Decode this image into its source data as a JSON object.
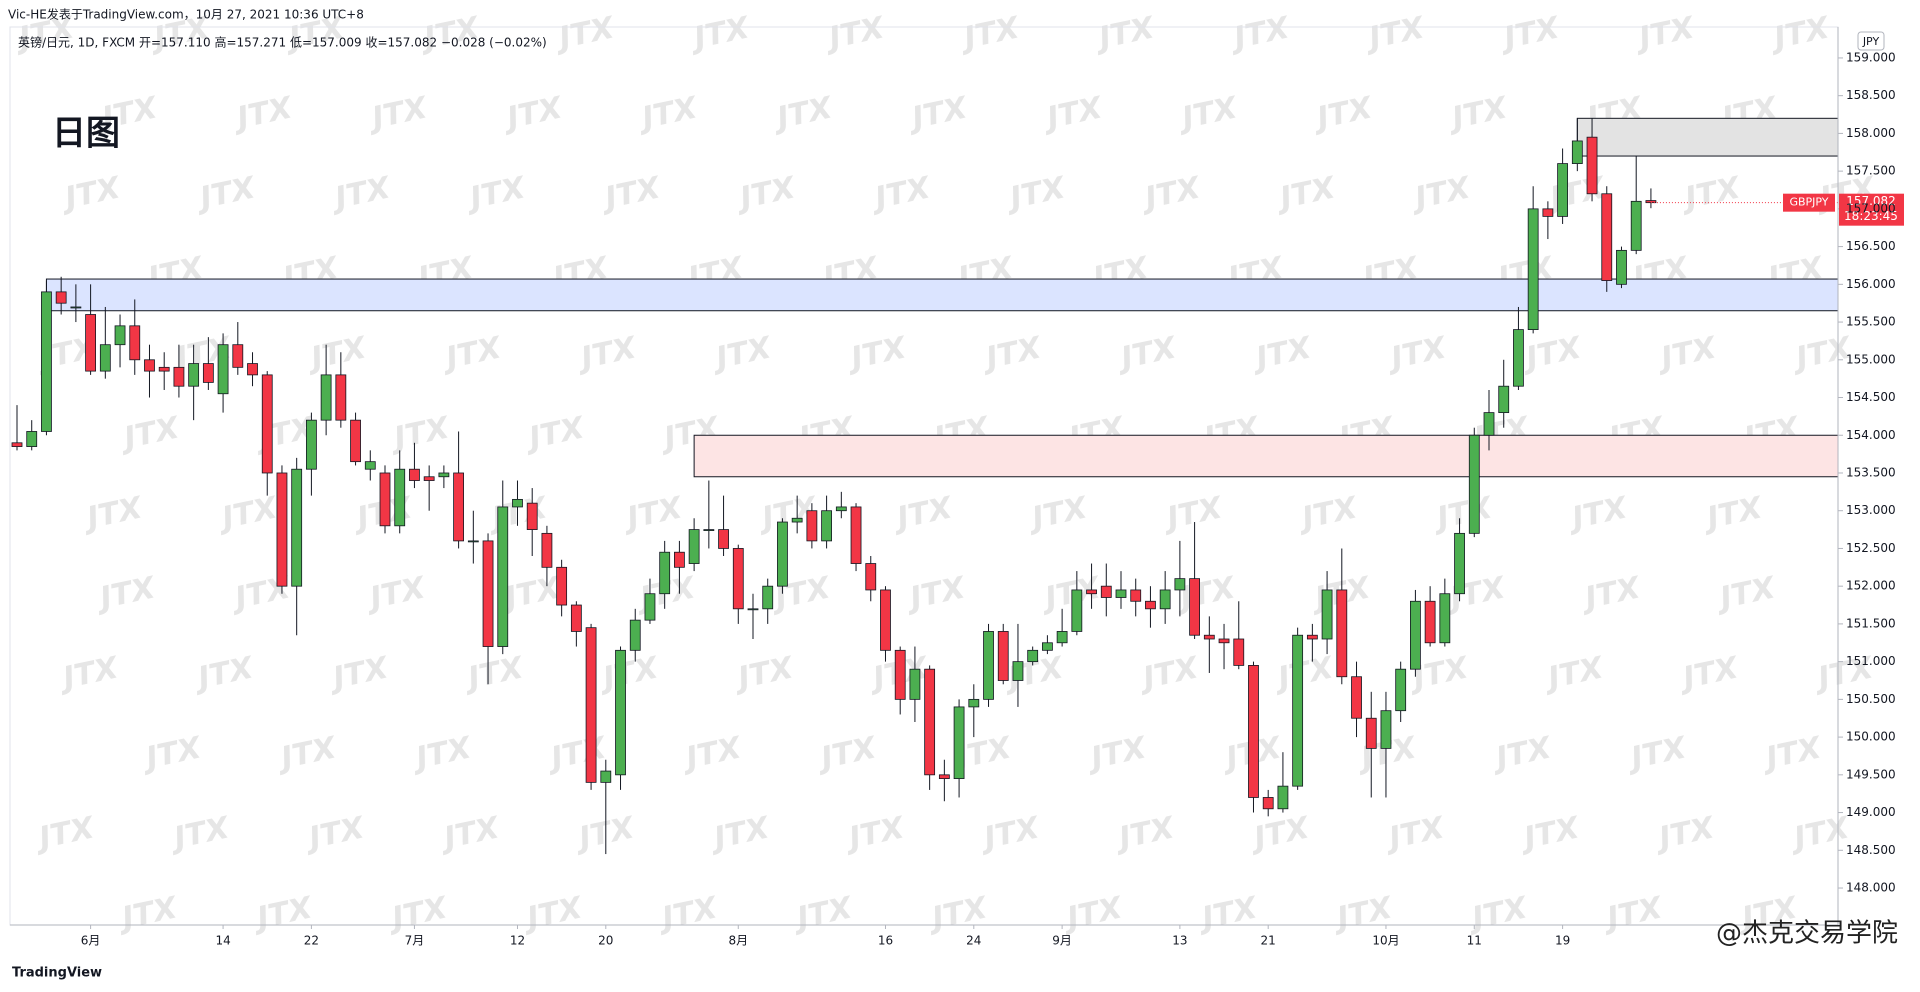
{
  "header": {
    "byline": "Vic-HE发表于TradingView.com，10月 27, 2021 10:36 UTC+8",
    "info": "英镑/日元, 1D, FXCM  开=157.110  高=157.271  低=157.009  收=157.082  −0.028 (−0.02%)",
    "badge": "日图",
    "currency": "JPY",
    "brand": "TradingView",
    "author_mark": "@杰克交易学院",
    "watermark": "JTX"
  },
  "price_tag": {
    "symbol": "GBPJPY",
    "price": "157.082",
    "countdown": "18:23:45"
  },
  "chart_data": {
    "type": "candlestick",
    "categories": [
      null,
      null,
      null,
      null,
      null,
      "6月",
      null,
      null,
      null,
      null,
      null,
      null,
      null,
      null,
      "14",
      null,
      null,
      null,
      null,
      null,
      "22",
      null,
      null,
      null,
      null,
      null,
      null,
      "7月",
      null,
      null,
      null,
      null,
      null,
      null,
      "12",
      null,
      null,
      null,
      null,
      null,
      "20",
      null,
      null,
      null,
      null,
      null,
      null,
      null,
      null,
      "8月",
      null,
      null,
      null,
      null,
      null,
      null,
      null,
      null,
      null,
      "16",
      null,
      null,
      null,
      null,
      null,
      "24",
      null,
      null,
      null,
      null,
      null,
      "9月",
      null,
      null,
      null,
      null,
      null,
      null,
      null,
      "13",
      null,
      null,
      null,
      null,
      null,
      "21",
      null,
      null,
      null,
      null,
      null,
      null,
      null,
      "10月",
      null,
      null,
      null,
      null,
      null,
      "11",
      null,
      null,
      null,
      null,
      null,
      "19",
      null,
      null,
      null,
      null,
      null,
      null
    ],
    "open": [
      153.9,
      153.85,
      154.05,
      155.9,
      155.7,
      155.6,
      154.85,
      155.2,
      155.45,
      155.0,
      154.9,
      154.9,
      154.65,
      154.95,
      154.55,
      155.2,
      154.95,
      154.8,
      153.5,
      152.0,
      153.55,
      154.2,
      154.8,
      154.2,
      153.55,
      153.5,
      152.8,
      153.55,
      153.45,
      153.45,
      153.5,
      152.6,
      152.6,
      151.2,
      153.05,
      153.1,
      152.7,
      152.25,
      151.75,
      151.45,
      149.4,
      149.5,
      151.15,
      151.55,
      151.9,
      152.45,
      152.3,
      152.75,
      152.75,
      152.5,
      151.7,
      151.7,
      152.0,
      152.85,
      153.0,
      152.6,
      153.0,
      153.05,
      152.3,
      151.95,
      151.15,
      150.5,
      150.9,
      149.5,
      149.45,
      150.4,
      150.5,
      151.4,
      150.75,
      151.0,
      151.15,
      151.25,
      151.4,
      151.95,
      152.0,
      151.85,
      151.95,
      151.8,
      151.7,
      151.95,
      152.1,
      151.35,
      151.3,
      151.3,
      150.95,
      149.2,
      149.05,
      149.35,
      151.35,
      151.3,
      151.95,
      150.8,
      150.25,
      149.85,
      150.35,
      150.9,
      151.8,
      151.25,
      151.9,
      152.7,
      154.0,
      154.3,
      154.65,
      155.4,
      157.0,
      156.9,
      157.6,
      157.95,
      157.2,
      156.0,
      156.45,
      157.11
    ],
    "high": [
      154.4,
      154.2,
      156.05,
      156.1,
      156.0,
      156.0,
      155.7,
      155.6,
      155.8,
      155.2,
      155.1,
      155.2,
      155.2,
      155.3,
      155.35,
      155.5,
      155.1,
      154.85,
      153.6,
      153.7,
      154.3,
      155.2,
      155.1,
      154.3,
      153.8,
      153.6,
      153.8,
      153.9,
      153.6,
      153.6,
      154.05,
      153.0,
      152.7,
      153.4,
      153.4,
      153.3,
      152.8,
      152.35,
      151.8,
      151.5,
      149.7,
      151.2,
      151.7,
      152.1,
      152.6,
      152.6,
      152.9,
      153.4,
      153.2,
      152.55,
      151.9,
      152.1,
      152.9,
      153.2,
      153.1,
      153.2,
      153.25,
      153.1,
      152.4,
      152.0,
      151.2,
      151.2,
      150.95,
      149.7,
      150.5,
      150.7,
      151.5,
      151.5,
      151.5,
      151.2,
      151.35,
      151.7,
      152.2,
      152.3,
      152.3,
      152.2,
      152.1,
      152.0,
      152.2,
      152.6,
      152.85,
      151.6,
      151.5,
      151.8,
      151.0,
      149.3,
      149.8,
      151.45,
      151.5,
      152.2,
      152.5,
      151.0,
      150.6,
      150.6,
      151.0,
      151.95,
      152.0,
      152.1,
      152.9,
      154.1,
      154.6,
      155.0,
      155.7,
      157.3,
      157.1,
      157.8,
      158.2,
      158.2,
      157.3,
      156.5,
      157.7,
      157.271
    ],
    "low": [
      153.8,
      153.8,
      154.0,
      155.6,
      155.5,
      154.8,
      154.75,
      154.9,
      154.8,
      154.5,
      154.6,
      154.5,
      154.2,
      154.6,
      154.3,
      154.8,
      154.65,
      153.2,
      151.9,
      151.35,
      153.2,
      154.0,
      154.1,
      153.6,
      153.4,
      152.7,
      152.7,
      153.3,
      153.0,
      153.3,
      152.5,
      152.3,
      150.7,
      151.1,
      152.8,
      152.4,
      152.0,
      151.6,
      151.2,
      149.3,
      148.45,
      149.3,
      151.0,
      151.5,
      151.7,
      151.9,
      152.2,
      152.5,
      152.4,
      151.5,
      151.3,
      151.5,
      151.9,
      152.7,
      152.5,
      152.5,
      152.9,
      152.2,
      151.8,
      151.0,
      150.3,
      150.2,
      149.3,
      149.15,
      149.2,
      150.0,
      150.4,
      150.7,
      150.4,
      150.95,
      151.1,
      151.2,
      151.35,
      151.7,
      151.6,
      151.7,
      151.6,
      151.45,
      151.5,
      151.6,
      151.3,
      150.85,
      150.9,
      150.9,
      149.0,
      148.95,
      149.0,
      149.3,
      151.0,
      151.1,
      150.7,
      150.0,
      149.2,
      149.2,
      150.2,
      150.8,
      151.2,
      151.2,
      151.8,
      152.65,
      153.8,
      154.1,
      154.6,
      155.35,
      156.6,
      156.8,
      157.5,
      157.1,
      155.9,
      155.95,
      156.4,
      157.009
    ],
    "close": [
      153.85,
      154.05,
      155.9,
      155.75,
      155.7,
      154.85,
      155.2,
      155.45,
      155.0,
      154.85,
      154.85,
      154.65,
      154.95,
      154.7,
      155.2,
      154.9,
      154.8,
      153.5,
      152.0,
      153.55,
      154.2,
      154.8,
      154.2,
      153.65,
      153.65,
      152.8,
      153.55,
      153.4,
      153.4,
      153.5,
      152.6,
      152.6,
      151.2,
      153.05,
      153.15,
      152.75,
      152.25,
      151.75,
      151.4,
      149.4,
      149.55,
      151.15,
      151.55,
      151.9,
      152.45,
      152.25,
      152.75,
      152.75,
      152.5,
      151.7,
      151.7,
      152.0,
      152.85,
      152.9,
      152.6,
      153.0,
      153.05,
      152.3,
      151.95,
      151.15,
      150.5,
      150.9,
      149.5,
      149.45,
      150.4,
      150.5,
      151.4,
      150.75,
      151.0,
      151.15,
      151.25,
      151.4,
      151.95,
      151.9,
      151.85,
      151.95,
      151.8,
      151.7,
      151.95,
      152.1,
      151.35,
      151.3,
      151.25,
      150.95,
      149.2,
      149.05,
      149.35,
      151.35,
      151.3,
      151.95,
      150.8,
      150.25,
      149.85,
      150.35,
      150.9,
      151.8,
      151.25,
      151.9,
      152.7,
      154.0,
      154.3,
      154.65,
      155.4,
      157.0,
      156.9,
      157.6,
      157.9,
      157.2,
      156.05,
      156.45,
      157.1,
      157.082
    ],
    "up_color": "#4caf50",
    "down_color": "#f23645",
    "ylim": [
      147.51,
      159.41
    ],
    "yticks": [
      {
        "value": 148,
        "label": "148.000"
      },
      {
        "value": 148.5,
        "label": "148.500"
      },
      {
        "value": 149,
        "label": "149.000"
      },
      {
        "value": 149.5,
        "label": "149.500"
      },
      {
        "value": 150,
        "label": "150.000"
      },
      {
        "value": 150.5,
        "label": "150.500"
      },
      {
        "value": 151,
        "label": "151.000"
      },
      {
        "value": 151.5,
        "label": "151.500"
      },
      {
        "value": 152,
        "label": "152.000"
      },
      {
        "value": 152.5,
        "label": "152.500"
      },
      {
        "value": 153,
        "label": "153.000"
      },
      {
        "value": 153.5,
        "label": "153.500"
      },
      {
        "value": 154,
        "label": "154.000"
      },
      {
        "value": 154.5,
        "label": "154.500"
      },
      {
        "value": 155,
        "label": "155.000"
      },
      {
        "value": 155.5,
        "label": "155.500"
      },
      {
        "value": 156,
        "label": "156.000"
      },
      {
        "value": 156.5,
        "label": "156.500"
      },
      {
        "value": 157,
        "label": "157.000"
      },
      {
        "value": 157.5,
        "label": "157.500"
      },
      {
        "value": 158,
        "label": "158.000"
      },
      {
        "value": 158.5,
        "label": "158.500"
      },
      {
        "value": 159,
        "label": "159.000"
      }
    ],
    "zones": [
      {
        "low": 155.65,
        "high": 156.07,
        "start": 2,
        "color": "#dbe4ff"
      },
      {
        "low": 153.45,
        "high": 154.0,
        "start": 46,
        "color": "#fde4e4"
      },
      {
        "low": 157.7,
        "high": 158.2,
        "start": 106,
        "color": "#e3e3e3"
      }
    ]
  }
}
